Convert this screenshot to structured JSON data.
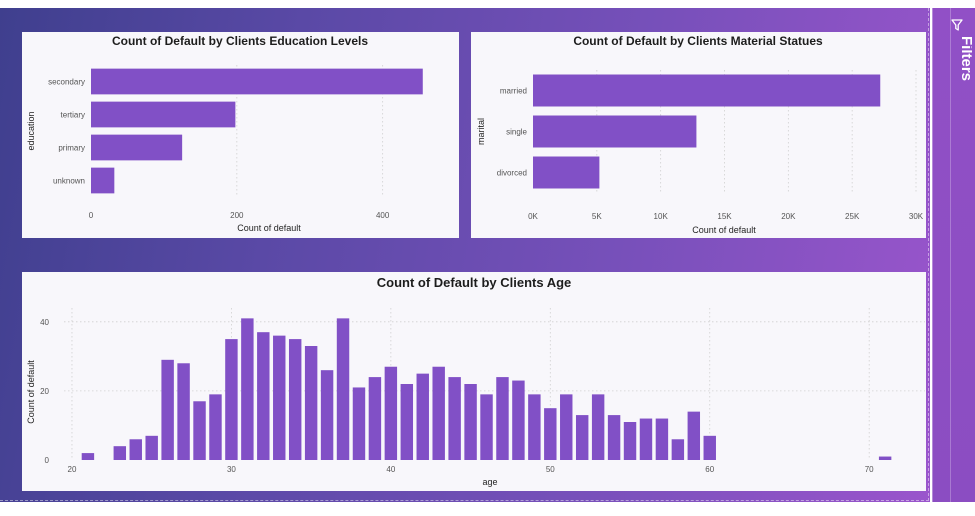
{
  "filters_pane": {
    "label": "Filters",
    "icon": "funnel-icon"
  },
  "colors": {
    "bar": "#8150c6",
    "card_bg": "#f8f7fb",
    "gradient_start": "#3f3f8e",
    "gradient_end": "#9a55cc"
  },
  "chart_data": [
    {
      "type": "bar",
      "orientation": "horizontal",
      "title": "Count of Default by Clients Education Levels",
      "xlabel": "Count of default",
      "ylabel": "education",
      "categories": [
        "secondary",
        "tertiary",
        "primary",
        "unknown"
      ],
      "values": [
        455,
        198,
        125,
        32
      ],
      "xlim": [
        0,
        480
      ],
      "xticks": [
        0,
        200,
        400
      ],
      "xtick_labels": [
        "0",
        "200",
        "400"
      ],
      "grid": true
    },
    {
      "type": "bar",
      "orientation": "horizontal",
      "title": "Count of Default by Clients Material Statues",
      "xlabel": "Count of default",
      "ylabel": "marital",
      "categories": [
        "married",
        "single",
        "divorced"
      ],
      "values": [
        27200,
        12800,
        5200
      ],
      "xlim": [
        0,
        30000
      ],
      "xticks": [
        0,
        5000,
        10000,
        15000,
        20000,
        25000,
        30000
      ],
      "xtick_labels": [
        "0K",
        "5K",
        "10K",
        "15K",
        "20K",
        "25K",
        "30K"
      ],
      "grid": true
    },
    {
      "type": "bar",
      "orientation": "vertical",
      "title": "Count of Default by Clients Age",
      "xlabel": "age",
      "ylabel": "Count of default",
      "x": [
        21,
        23,
        24,
        25,
        26,
        27,
        28,
        29,
        30,
        31,
        32,
        33,
        34,
        35,
        36,
        37,
        38,
        39,
        40,
        41,
        42,
        43,
        44,
        45,
        46,
        47,
        48,
        49,
        50,
        51,
        52,
        53,
        54,
        55,
        56,
        57,
        58,
        59,
        60,
        71
      ],
      "values": [
        2,
        4,
        6,
        7,
        29,
        28,
        17,
        19,
        35,
        41,
        37,
        36,
        35,
        33,
        26,
        41,
        21,
        24,
        27,
        22,
        25,
        27,
        24,
        22,
        19,
        24,
        23,
        19,
        15,
        19,
        13,
        19,
        13,
        11,
        12,
        12,
        6,
        14,
        7,
        1
      ],
      "xlim": [
        19.5,
        73.5
      ],
      "ylim": [
        0,
        44
      ],
      "xticks": [
        20,
        30,
        40,
        50,
        60,
        70
      ],
      "xtick_labels": [
        "20",
        "30",
        "40",
        "50",
        "60",
        "70"
      ],
      "yticks": [
        0,
        20,
        40
      ],
      "ytick_labels": [
        "0",
        "20",
        "40"
      ],
      "grid": true
    }
  ]
}
